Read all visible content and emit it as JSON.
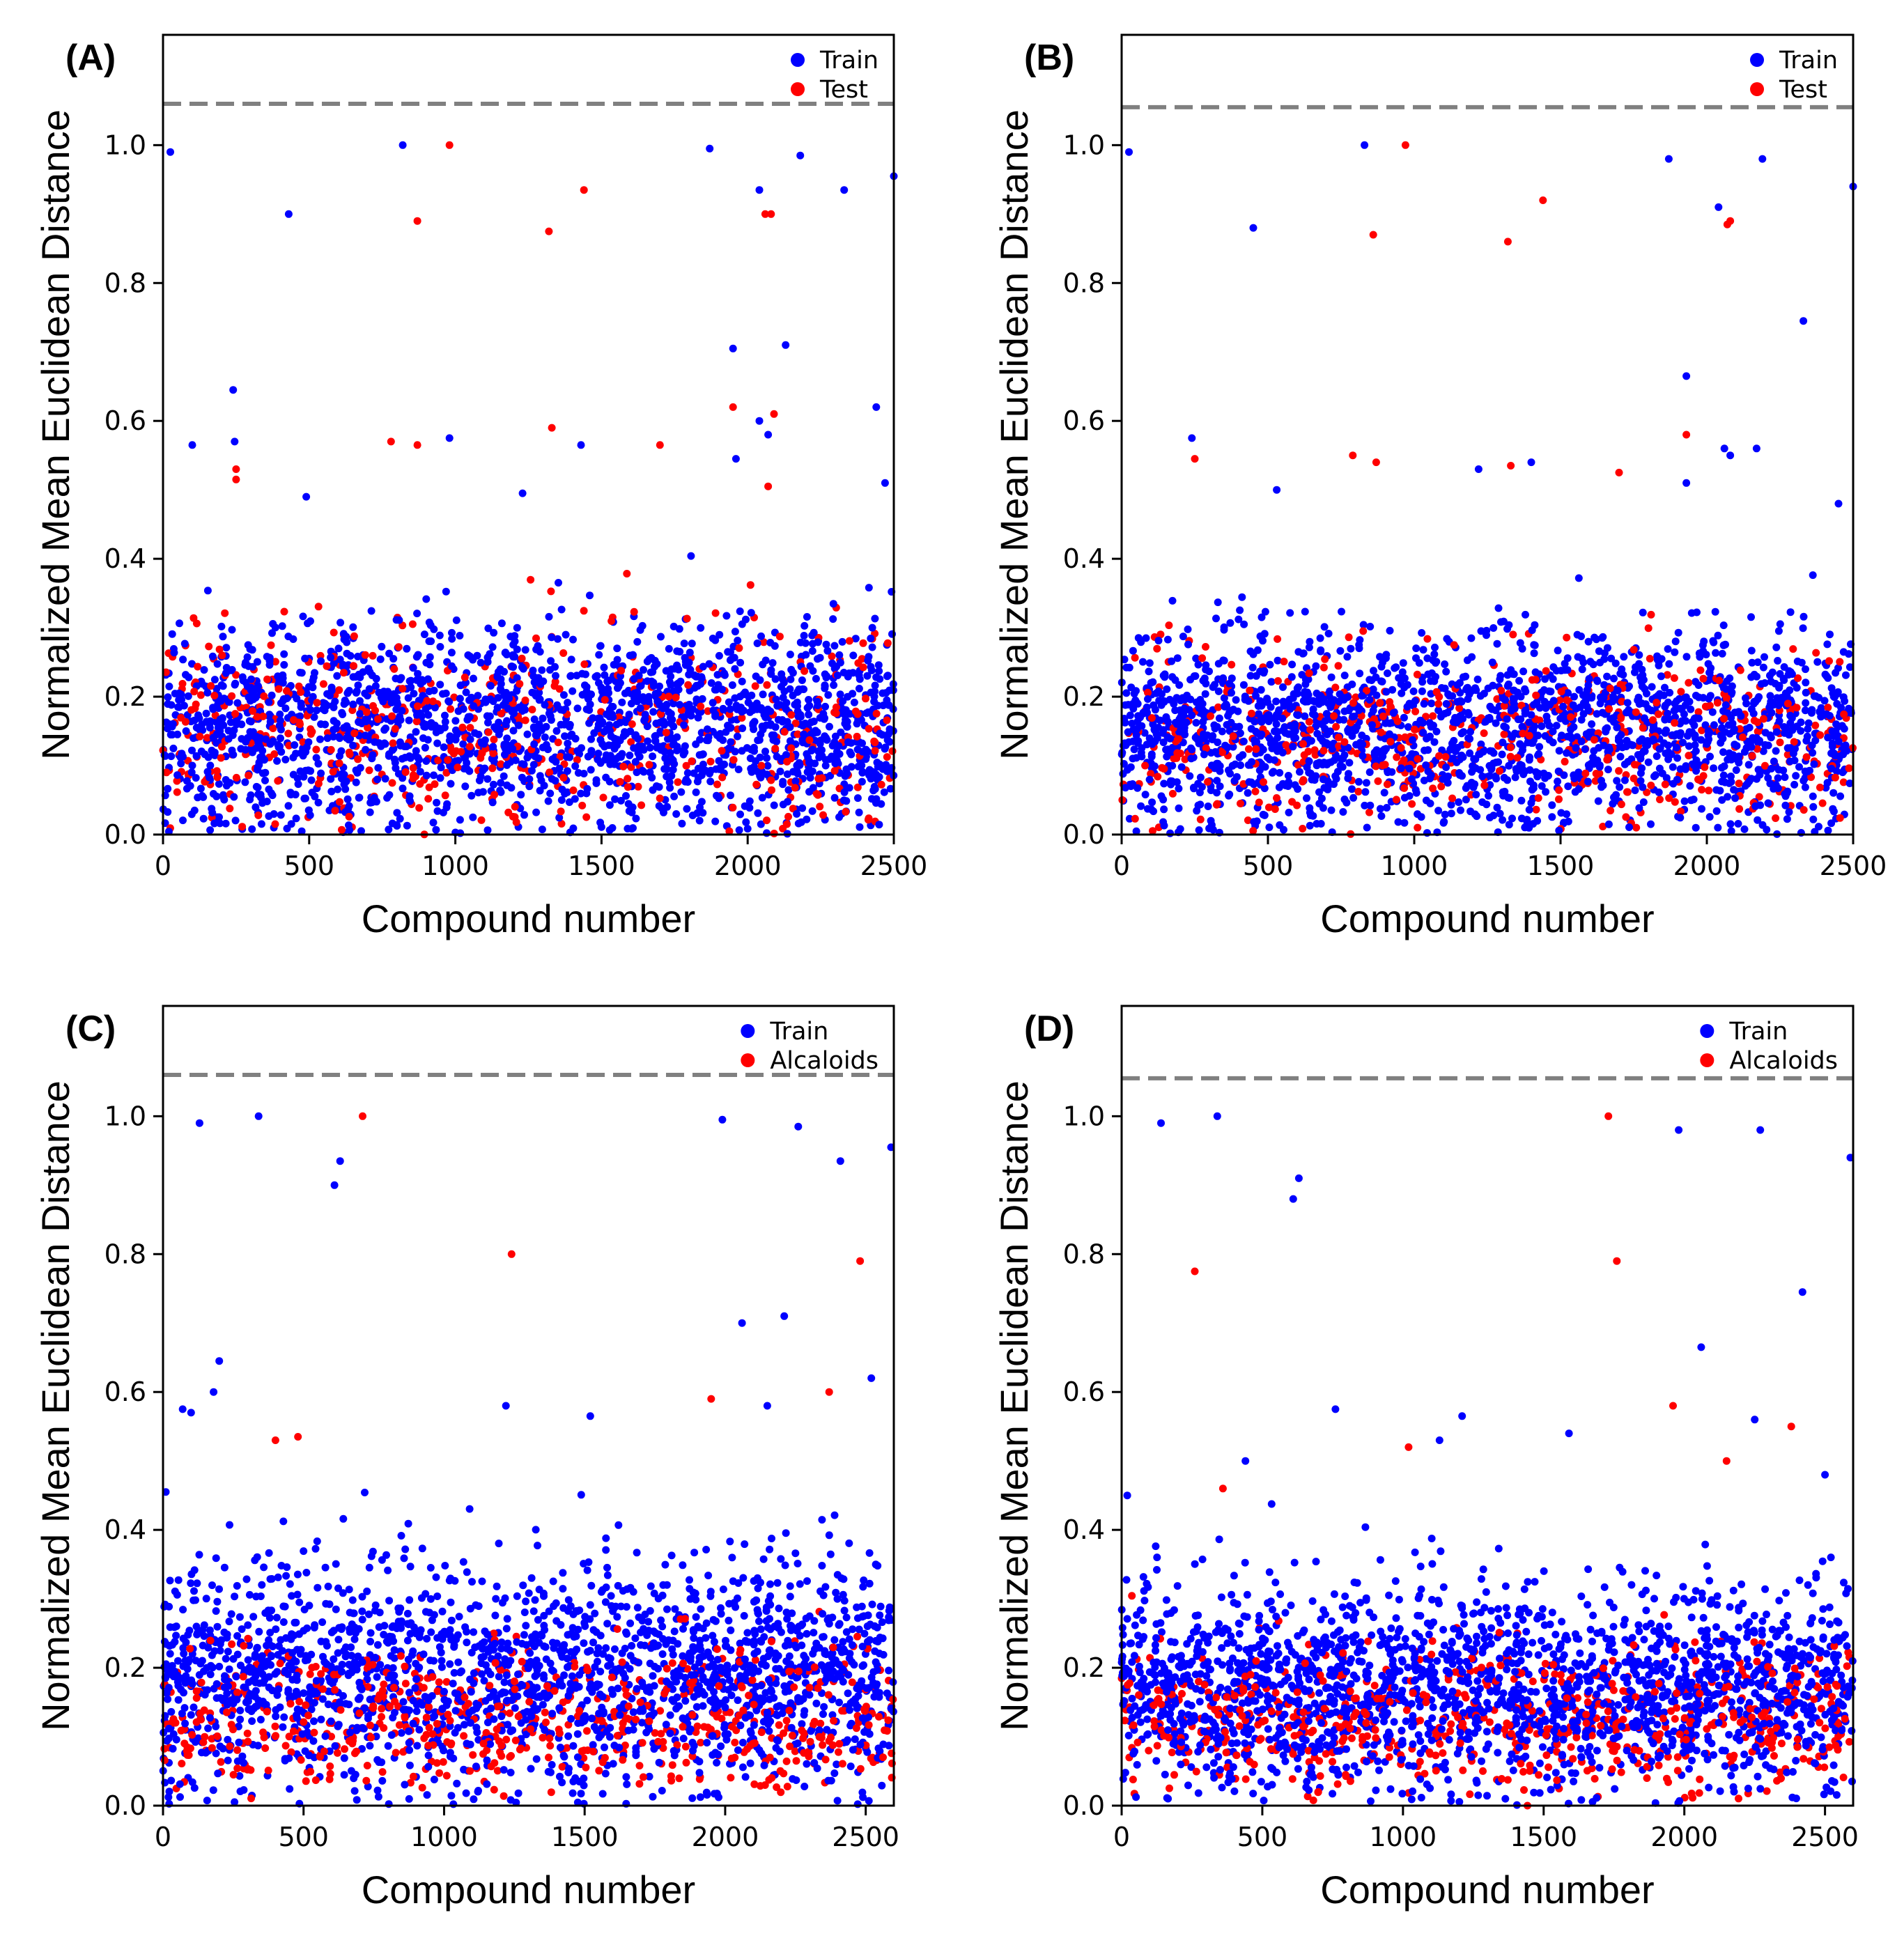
{
  "colors": {
    "train": "#0000ff",
    "test": "#ff0000",
    "refline": "#808080"
  },
  "chart_data": [
    {
      "type": "scatter",
      "panel_label": "(A)",
      "xlabel": "Compound number",
      "ylabel": "Normalized Mean Euclidean Distance",
      "xlim": [
        0,
        2500
      ],
      "ylim": [
        0,
        1.16
      ],
      "xticks": [
        "0",
        "500",
        "1000",
        "1500",
        "2000",
        "2500"
      ],
      "yticks": [
        "0.0",
        "0.2",
        "0.4",
        "0.6",
        "0.8",
        "1.0"
      ],
      "reference_line_y": 1.06,
      "legend": [
        "Train",
        "Test"
      ],
      "legend_position": "top-right",
      "series": [
        {
          "name": "Train",
          "color": "#0000ff",
          "n_points": 2000,
          "bulk_mean": 0.16,
          "bulk_sd": 0.075,
          "upper_bound": 0.46,
          "outliers": [
            [
              25,
              0.99
            ],
            [
              100,
              0.565
            ],
            [
              240,
              0.645
            ],
            [
              245,
              0.57
            ],
            [
              430,
              0.9
            ],
            [
              490,
              0.49
            ],
            [
              820,
              1.0
            ],
            [
              980,
              0.575
            ],
            [
              1230,
              0.495
            ],
            [
              1430,
              0.565
            ],
            [
              1870,
              0.995
            ],
            [
              1950,
              0.705
            ],
            [
              1960,
              0.545
            ],
            [
              2040,
              0.935
            ],
            [
              2040,
              0.6
            ],
            [
              2070,
              0.58
            ],
            [
              2130,
              0.71
            ],
            [
              2180,
              0.985
            ],
            [
              2330,
              0.935
            ],
            [
              2440,
              0.62
            ],
            [
              2470,
              0.51
            ],
            [
              2500,
              0.955
            ]
          ]
        },
        {
          "name": "Test",
          "color": "#ff0000",
          "n_points": 520,
          "bulk_mean": 0.15,
          "bulk_sd": 0.07,
          "upper_bound": 0.46,
          "outliers": [
            [
              250,
              0.53
            ],
            [
              250,
              0.515
            ],
            [
              780,
              0.57
            ],
            [
              870,
              0.89
            ],
            [
              870,
              0.565
            ],
            [
              980,
              1.0
            ],
            [
              1320,
              0.875
            ],
            [
              1330,
              0.59
            ],
            [
              1440,
              0.935
            ],
            [
              1700,
              0.565
            ],
            [
              1950,
              0.62
            ],
            [
              2060,
              0.9
            ],
            [
              2080,
              0.9
            ],
            [
              2070,
              0.505
            ],
            [
              2090,
              0.61
            ]
          ]
        }
      ]
    },
    {
      "type": "scatter",
      "panel_label": "(B)",
      "xlabel": "Compound number",
      "ylabel": "Normalized Mean Euclidean Distance",
      "xlim": [
        0,
        2500
      ],
      "ylim": [
        0,
        1.16
      ],
      "xticks": [
        "0",
        "500",
        "1000",
        "1500",
        "2000",
        "2500"
      ],
      "yticks": [
        "0.0",
        "0.2",
        "0.4",
        "0.6",
        "0.8",
        "1.0"
      ],
      "reference_line_y": 1.055,
      "legend": [
        "Train",
        "Test"
      ],
      "legend_position": "top-right",
      "series": [
        {
          "name": "Train",
          "color": "#0000ff",
          "n_points": 2000,
          "bulk_mean": 0.15,
          "bulk_sd": 0.07,
          "upper_bound": 0.46,
          "outliers": [
            [
              25,
              0.99
            ],
            [
              240,
              0.575
            ],
            [
              450,
              0.88
            ],
            [
              530,
              0.5
            ],
            [
              830,
              1.0
            ],
            [
              1220,
              0.53
            ],
            [
              1400,
              0.54
            ],
            [
              1870,
              0.98
            ],
            [
              1930,
              0.665
            ],
            [
              1930,
              0.51
            ],
            [
              2040,
              0.91
            ],
            [
              2060,
              0.56
            ],
            [
              2080,
              0.55
            ],
            [
              2170,
              0.56
            ],
            [
              2190,
              0.98
            ],
            [
              2330,
              0.745
            ],
            [
              2450,
              0.48
            ],
            [
              2500,
              0.94
            ]
          ]
        },
        {
          "name": "Test",
          "color": "#ff0000",
          "n_points": 520,
          "bulk_mean": 0.14,
          "bulk_sd": 0.065,
          "upper_bound": 0.46,
          "outliers": [
            [
              250,
              0.545
            ],
            [
              790,
              0.55
            ],
            [
              860,
              0.87
            ],
            [
              870,
              0.54
            ],
            [
              970,
              1.0
            ],
            [
              1320,
              0.86
            ],
            [
              1330,
              0.535
            ],
            [
              1440,
              0.92
            ],
            [
              1700,
              0.525
            ],
            [
              1930,
              0.58
            ],
            [
              2070,
              0.885
            ],
            [
              2080,
              0.89
            ]
          ]
        }
      ]
    },
    {
      "type": "scatter",
      "panel_label": "(C)",
      "xlabel": "Compound number",
      "ylabel": "Normalized Mean Euclidean Distance",
      "xlim": [
        0,
        2600
      ],
      "ylim": [
        0,
        1.16
      ],
      "xticks": [
        "0",
        "500",
        "1000",
        "1500",
        "2000",
        "2500"
      ],
      "yticks": [
        "0.0",
        "0.2",
        "0.4",
        "0.6",
        "0.8",
        "1.0"
      ],
      "reference_line_y": 1.06,
      "legend": [
        "Train",
        "Alcaloids"
      ],
      "legend_position": "top-right",
      "series": [
        {
          "name": "Train",
          "color": "#0000ff",
          "n_points": 2000,
          "bulk_mean": 0.19,
          "bulk_sd": 0.085,
          "upper_bound": 0.46,
          "outliers": [
            [
              10,
              0.455
            ],
            [
              70,
              0.575
            ],
            [
              100,
              0.57
            ],
            [
              130,
              0.99
            ],
            [
              180,
              0.6
            ],
            [
              200,
              0.645
            ],
            [
              340,
              1.0
            ],
            [
              610,
              0.9
            ],
            [
              630,
              0.935
            ],
            [
              1220,
              0.58
            ],
            [
              1520,
              0.565
            ],
            [
              1990,
              0.995
            ],
            [
              2060,
              0.7
            ],
            [
              2150,
              0.58
            ],
            [
              2210,
              0.71
            ],
            [
              2260,
              0.985
            ],
            [
              2410,
              0.935
            ],
            [
              2520,
              0.62
            ],
            [
              2590,
              0.955
            ]
          ]
        },
        {
          "name": "Alcaloids",
          "color": "#ff0000",
          "n_points": 620,
          "bulk_mean": 0.12,
          "bulk_sd": 0.055,
          "upper_bound": 0.45,
          "outliers": [
            [
              400,
              0.53
            ],
            [
              480,
              0.535
            ],
            [
              710,
              1.0
            ],
            [
              1240,
              0.8
            ],
            [
              1950,
              0.59
            ],
            [
              2370,
              0.6
            ],
            [
              2480,
              0.79
            ]
          ]
        }
      ]
    },
    {
      "type": "scatter",
      "panel_label": "(D)",
      "xlabel": "Compound number",
      "ylabel": "Normalized Mean Euclidean Distance",
      "xlim": [
        0,
        2600
      ],
      "ylim": [
        0,
        1.16
      ],
      "xticks": [
        "0",
        "500",
        "1000",
        "1500",
        "2000",
        "2500"
      ],
      "yticks": [
        "0.0",
        "0.2",
        "0.4",
        "0.6",
        "0.8",
        "1.0"
      ],
      "reference_line_y": 1.055,
      "legend": [
        "Train",
        "Alcaloids"
      ],
      "legend_position": "top-right",
      "series": [
        {
          "name": "Train",
          "color": "#0000ff",
          "n_points": 2000,
          "bulk_mean": 0.17,
          "bulk_sd": 0.075,
          "upper_bound": 0.46,
          "outliers": [
            [
              20,
              0.45
            ],
            [
              140,
              0.99
            ],
            [
              340,
              1.0
            ],
            [
              440,
              0.5
            ],
            [
              610,
              0.88
            ],
            [
              630,
              0.91
            ],
            [
              760,
              0.575
            ],
            [
              1130,
              0.53
            ],
            [
              1210,
              0.565
            ],
            [
              1590,
              0.54
            ],
            [
              1980,
              0.98
            ],
            [
              2060,
              0.665
            ],
            [
              2250,
              0.56
            ],
            [
              2270,
              0.98
            ],
            [
              2420,
              0.745
            ],
            [
              2500,
              0.48
            ],
            [
              2590,
              0.94
            ]
          ]
        },
        {
          "name": "Alcaloids",
          "color": "#ff0000",
          "n_points": 620,
          "bulk_mean": 0.12,
          "bulk_sd": 0.055,
          "upper_bound": 0.46,
          "outliers": [
            [
              260,
              0.775
            ],
            [
              360,
              0.46
            ],
            [
              1020,
              0.52
            ],
            [
              1730,
              1.0
            ],
            [
              1760,
              0.79
            ],
            [
              1960,
              0.58
            ],
            [
              2150,
              0.5
            ],
            [
              2380,
              0.55
            ]
          ]
        }
      ]
    }
  ]
}
